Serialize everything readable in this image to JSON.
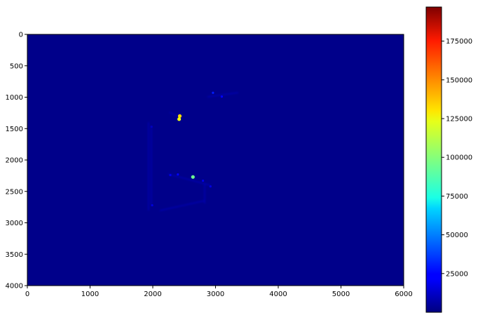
{
  "chart_data": {
    "type": "heatmap",
    "title": "",
    "xlabel": "",
    "ylabel": "",
    "xlim": [
      0,
      6000
    ],
    "ylim": [
      4000,
      0
    ],
    "y_inverted": true,
    "x_ticks": [
      "0",
      "1000",
      "2000",
      "3000",
      "4000",
      "5000",
      "6000"
    ],
    "y_ticks": [
      "0",
      "500",
      "1000",
      "1500",
      "2000",
      "2500",
      "3000",
      "3500",
      "4000"
    ],
    "background_value": 0,
    "colormap": "jet",
    "colorbar": {
      "range": [
        0,
        197000
      ],
      "ticks": [
        "25000",
        "50000",
        "75000",
        "100000",
        "125000",
        "150000",
        "175000"
      ],
      "tick_values": [
        25000,
        50000,
        75000,
        100000,
        125000,
        150000,
        175000
      ],
      "placement": "right"
    },
    "grid": false,
    "highlights": [
      {
        "x": 2430,
        "y": 1300,
        "value": 130000
      },
      {
        "x": 2420,
        "y": 1350,
        "value": 120000
      },
      {
        "x": 2640,
        "y": 2270,
        "value": 95000
      },
      {
        "x": 2960,
        "y": 930,
        "value": 30000
      },
      {
        "x": 3100,
        "y": 990,
        "value": 25000
      },
      {
        "x": 2280,
        "y": 2240,
        "value": 20000
      },
      {
        "x": 2400,
        "y": 2230,
        "value": 25000
      },
      {
        "x": 2800,
        "y": 2330,
        "value": 20000
      },
      {
        "x": 2920,
        "y": 2420,
        "value": 18000
      },
      {
        "x": 1990,
        "y": 2720,
        "value": 18000
      },
      {
        "x": 1980,
        "y": 1470,
        "value": 12000
      }
    ]
  }
}
